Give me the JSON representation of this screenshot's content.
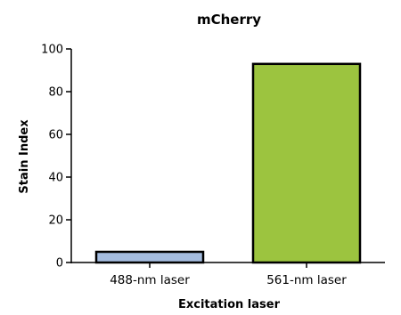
{
  "chart_data": {
    "type": "bar",
    "title": "mCherry",
    "xlabel": "Excitation laser",
    "ylabel": "Stain Index",
    "categories": [
      "488-nm laser",
      "561-nm laser"
    ],
    "values": [
      5,
      93
    ],
    "colors": [
      "#a5bde0",
      "#9cc43f"
    ],
    "ylim": [
      0,
      100
    ],
    "yticks": [
      0,
      20,
      40,
      60,
      80,
      100
    ],
    "grid": false,
    "legend": "none"
  }
}
